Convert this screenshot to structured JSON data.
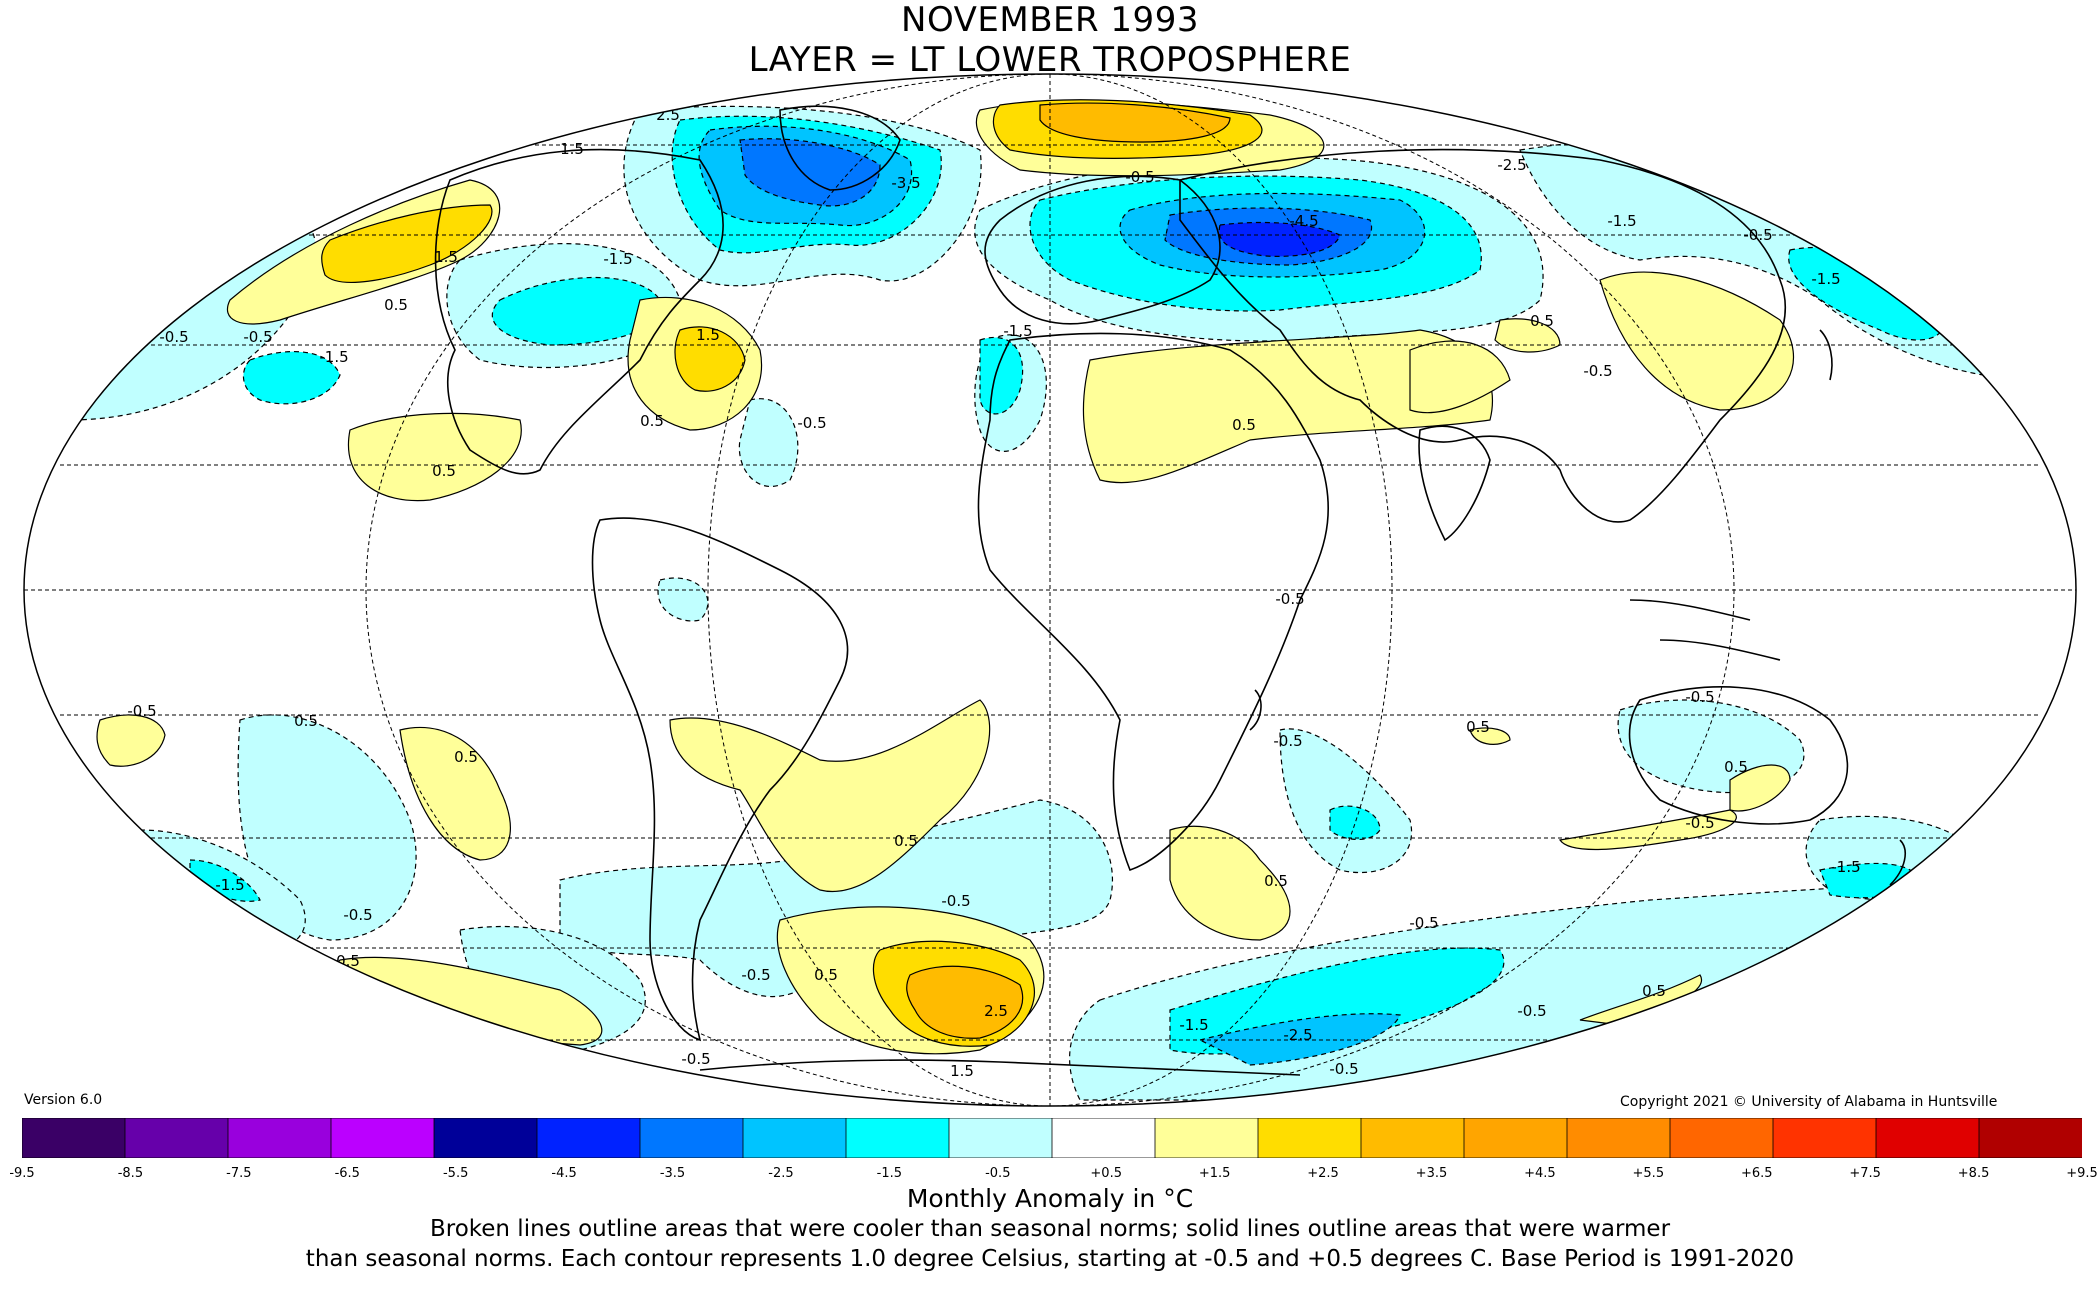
{
  "title": {
    "line1": "NOVEMBER 1993",
    "line2": "LAYER = LT LOWER TROPOSPHERE"
  },
  "version": "Version 6.0",
  "copyright": "Copyright 2021 © University of Alabama in Huntsville",
  "colorbar": {
    "unit_label": "Monthly Anomaly in °C",
    "ticks": [
      "-9.5",
      "-8.5",
      "-7.5",
      "-6.5",
      "-5.5",
      "-4.5",
      "-3.5",
      "-2.5",
      "-1.5",
      "-0.5",
      "+0.5",
      "+1.5",
      "+2.5",
      "+3.5",
      "+4.5",
      "+5.5",
      "+6.5",
      "+7.5",
      "+8.5",
      "+9.5"
    ],
    "colors": [
      "#3a0066",
      "#6600aa",
      "#9900dd",
      "#bb00ff",
      "#000099",
      "#0022ff",
      "#0077ff",
      "#00c4ff",
      "#00ffff",
      "#c0ffff",
      "#ffffff",
      "#ffff99",
      "#ffdd00",
      "#ffbb00",
      "#ffa500",
      "#ff8c00",
      "#ff6600",
      "#ff3300",
      "#e00000",
      "#b00000"
    ]
  },
  "notes": {
    "line1": "Broken lines outline areas that were cooler than seasonal norms; solid lines outline areas that were warmer",
    "line2": "than seasonal norms. Each contour represents 1.0 degree Celsius, starting at -0.5 and +0.5 degrees C. Base Period is 1991-2020"
  },
  "contour_labels": [
    "2.5",
    "1.5",
    "1.5",
    "0.5",
    "-0.5",
    "-0.5",
    "-1.5",
    "-1.5",
    "1.5",
    "-0.5",
    "0.5",
    "0.5",
    "-3.5",
    "-0.5",
    "-4.5",
    "-1.5",
    "-2.5",
    "-0.5",
    "-1.5",
    "0.5",
    "-0.5",
    "-1.5",
    "0.5",
    "-0.5",
    "-0.5",
    "0.5",
    "0.5",
    "0.5",
    "0.5",
    "-0.5",
    "-0.5",
    "0.5",
    "-1.5",
    "-0.5",
    "0.5",
    "-0.5",
    "-0.5",
    "0.5",
    "2.5",
    "1.5",
    "-1.5",
    "-2.5",
    "-0.5",
    "-0.5",
    "0.5",
    "-0.5",
    "-0.5",
    "0.5",
    "-0.5",
    "-1.5"
  ]
}
